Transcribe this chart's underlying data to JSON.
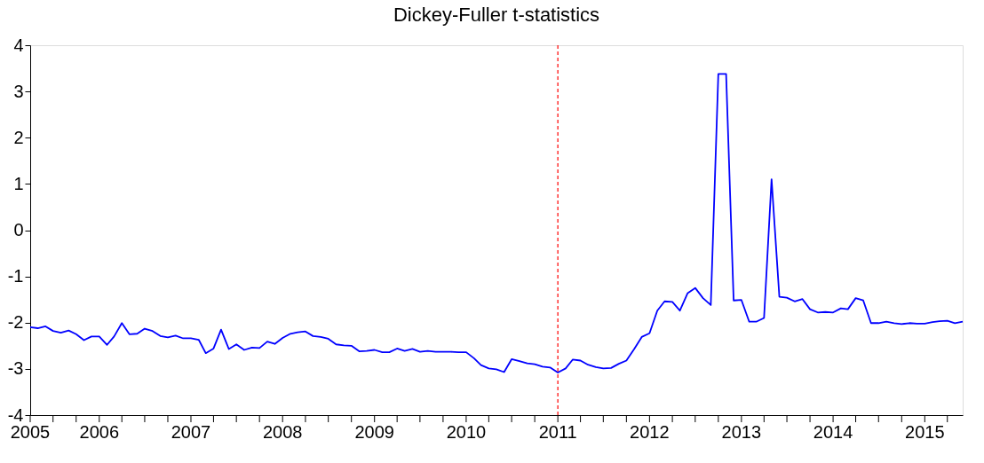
{
  "chart_data": {
    "type": "line",
    "title": "Dickey-Fuller t-statistics",
    "x": [
      "2005-04",
      "2005-05",
      "2005-06",
      "2005-07",
      "2005-08",
      "2005-09",
      "2005-10",
      "2005-11",
      "2005-12",
      "2006-01",
      "2006-02",
      "2006-03",
      "2006-04",
      "2006-05",
      "2006-06",
      "2006-07",
      "2006-08",
      "2006-09",
      "2006-10",
      "2006-11",
      "2006-12",
      "2007-01",
      "2007-02",
      "2007-03",
      "2007-04",
      "2007-05",
      "2007-06",
      "2007-07",
      "2007-08",
      "2007-09",
      "2007-10",
      "2007-11",
      "2007-12",
      "2008-01",
      "2008-02",
      "2008-03",
      "2008-04",
      "2008-05",
      "2008-06",
      "2008-07",
      "2008-08",
      "2008-09",
      "2008-10",
      "2008-11",
      "2008-12",
      "2009-01",
      "2009-02",
      "2009-03",
      "2009-04",
      "2009-05",
      "2009-06",
      "2009-07",
      "2009-08",
      "2009-09",
      "2009-10",
      "2009-11",
      "2009-12",
      "2010-01",
      "2010-02",
      "2010-03",
      "2010-04",
      "2010-05",
      "2010-06",
      "2010-07",
      "2010-08",
      "2010-09",
      "2010-10",
      "2010-11",
      "2010-12",
      "2011-01",
      "2011-02",
      "2011-03",
      "2011-04",
      "2011-05",
      "2011-06",
      "2011-07",
      "2011-08",
      "2011-09",
      "2011-10",
      "2011-11",
      "2011-12",
      "2012-01",
      "2012-02",
      "2012-03",
      "2012-04",
      "2012-05",
      "2012-06",
      "2012-07",
      "2012-08",
      "2012-09",
      "2012-10",
      "2012-11",
      "2012-12",
      "2013-01",
      "2013-02",
      "2013-03",
      "2013-04",
      "2013-05",
      "2013-06",
      "2013-07",
      "2013-08",
      "2013-09",
      "2013-10",
      "2013-11",
      "2013-12",
      "2014-01",
      "2014-02",
      "2014-03",
      "2014-04",
      "2014-05",
      "2014-06",
      "2014-07",
      "2014-08",
      "2014-09",
      "2014-10",
      "2014-11",
      "2014-12",
      "2015-01",
      "2015-02",
      "2015-03",
      "2015-04",
      "2015-05",
      "2015-06"
    ],
    "series": [
      {
        "color": "#0000ff",
        "values": [
          -2.1,
          -2.12,
          -2.08,
          -2.18,
          -2.22,
          -2.17,
          -2.25,
          -2.38,
          -2.3,
          -2.3,
          -2.48,
          -2.3,
          -2.01,
          -2.25,
          -2.24,
          -2.13,
          -2.18,
          -2.29,
          -2.32,
          -2.28,
          -2.34,
          -2.34,
          -2.37,
          -2.66,
          -2.56,
          -2.15,
          -2.57,
          -2.47,
          -2.59,
          -2.54,
          -2.55,
          -2.41,
          -2.46,
          -2.33,
          -2.24,
          -2.21,
          -2.19,
          -2.29,
          -2.31,
          -2.35,
          -2.47,
          -2.49,
          -2.5,
          -2.62,
          -2.61,
          -2.59,
          -2.64,
          -2.64,
          -2.56,
          -2.61,
          -2.57,
          -2.63,
          -2.61,
          -2.63,
          -2.63,
          -2.63,
          -2.64,
          -2.64,
          -2.77,
          -2.92,
          -2.99,
          -3.01,
          -3.07,
          -2.79,
          -2.83,
          -2.88,
          -2.9,
          -2.95,
          -2.97,
          -3.08,
          -2.99,
          -2.8,
          -2.82,
          -2.91,
          -2.96,
          -2.99,
          -2.98,
          -2.89,
          -2.82,
          -2.57,
          -2.31,
          -2.23,
          -1.74,
          -1.54,
          -1.55,
          -1.74,
          -1.36,
          -1.25,
          -1.47,
          -1.62,
          3.38,
          3.38,
          -1.52,
          -1.51,
          -1.98,
          -1.98,
          -1.9,
          1.1,
          -1.44,
          -1.46,
          -1.54,
          -1.49,
          -1.71,
          -1.78,
          -1.77,
          -1.78,
          -1.69,
          -1.71,
          -1.47,
          -1.52,
          -2.01,
          -2.01,
          -1.98,
          -2.01,
          -2.03,
          -2.01,
          -2.02,
          -2.02,
          -1.99,
          -1.97,
          -1.96,
          -2.01,
          -1.98
        ]
      }
    ],
    "xlim": [
      "2005-04",
      "2015-06"
    ],
    "xticks": [
      {
        "value": "2005-04",
        "label": "2005"
      },
      {
        "value": "2005-07",
        "label": null
      },
      {
        "value": "2005-10",
        "label": null
      },
      {
        "value": "2006-01",
        "label": "2006"
      },
      {
        "value": "2006-04",
        "label": null
      },
      {
        "value": "2006-07",
        "label": null
      },
      {
        "value": "2006-10",
        "label": null
      },
      {
        "value": "2007-01",
        "label": "2007"
      },
      {
        "value": "2007-04",
        "label": null
      },
      {
        "value": "2007-07",
        "label": null
      },
      {
        "value": "2007-10",
        "label": null
      },
      {
        "value": "2008-01",
        "label": "2008"
      },
      {
        "value": "2008-04",
        "label": null
      },
      {
        "value": "2008-07",
        "label": null
      },
      {
        "value": "2008-10",
        "label": null
      },
      {
        "value": "2009-01",
        "label": "2009"
      },
      {
        "value": "2009-04",
        "label": null
      },
      {
        "value": "2009-07",
        "label": null
      },
      {
        "value": "2009-10",
        "label": null
      },
      {
        "value": "2010-01",
        "label": "2010"
      },
      {
        "value": "2010-04",
        "label": null
      },
      {
        "value": "2010-07",
        "label": null
      },
      {
        "value": "2010-10",
        "label": null
      },
      {
        "value": "2011-01",
        "label": "2011"
      },
      {
        "value": "2011-04",
        "label": null
      },
      {
        "value": "2011-07",
        "label": null
      },
      {
        "value": "2011-10",
        "label": null
      },
      {
        "value": "2012-01",
        "label": "2012"
      },
      {
        "value": "2012-04",
        "label": null
      },
      {
        "value": "2012-07",
        "label": null
      },
      {
        "value": "2012-10",
        "label": null
      },
      {
        "value": "2013-01",
        "label": "2013"
      },
      {
        "value": "2013-04",
        "label": null
      },
      {
        "value": "2013-07",
        "label": null
      },
      {
        "value": "2013-10",
        "label": null
      },
      {
        "value": "2014-01",
        "label": "2014"
      },
      {
        "value": "2014-04",
        "label": null
      },
      {
        "value": "2014-07",
        "label": null
      },
      {
        "value": "2014-10",
        "label": null
      },
      {
        "value": "2015-01",
        "label": "2015"
      },
      {
        "value": "2015-04",
        "label": null
      }
    ],
    "ylim": [
      -4,
      4
    ],
    "yticks": [
      -4,
      -3,
      -2,
      -1,
      0,
      1,
      2,
      3,
      4
    ],
    "ref_lines": [
      {
        "axis": "x",
        "value": "2011-01",
        "color": "#ff0000",
        "line_style": "dashed"
      }
    ],
    "grid": false
  }
}
